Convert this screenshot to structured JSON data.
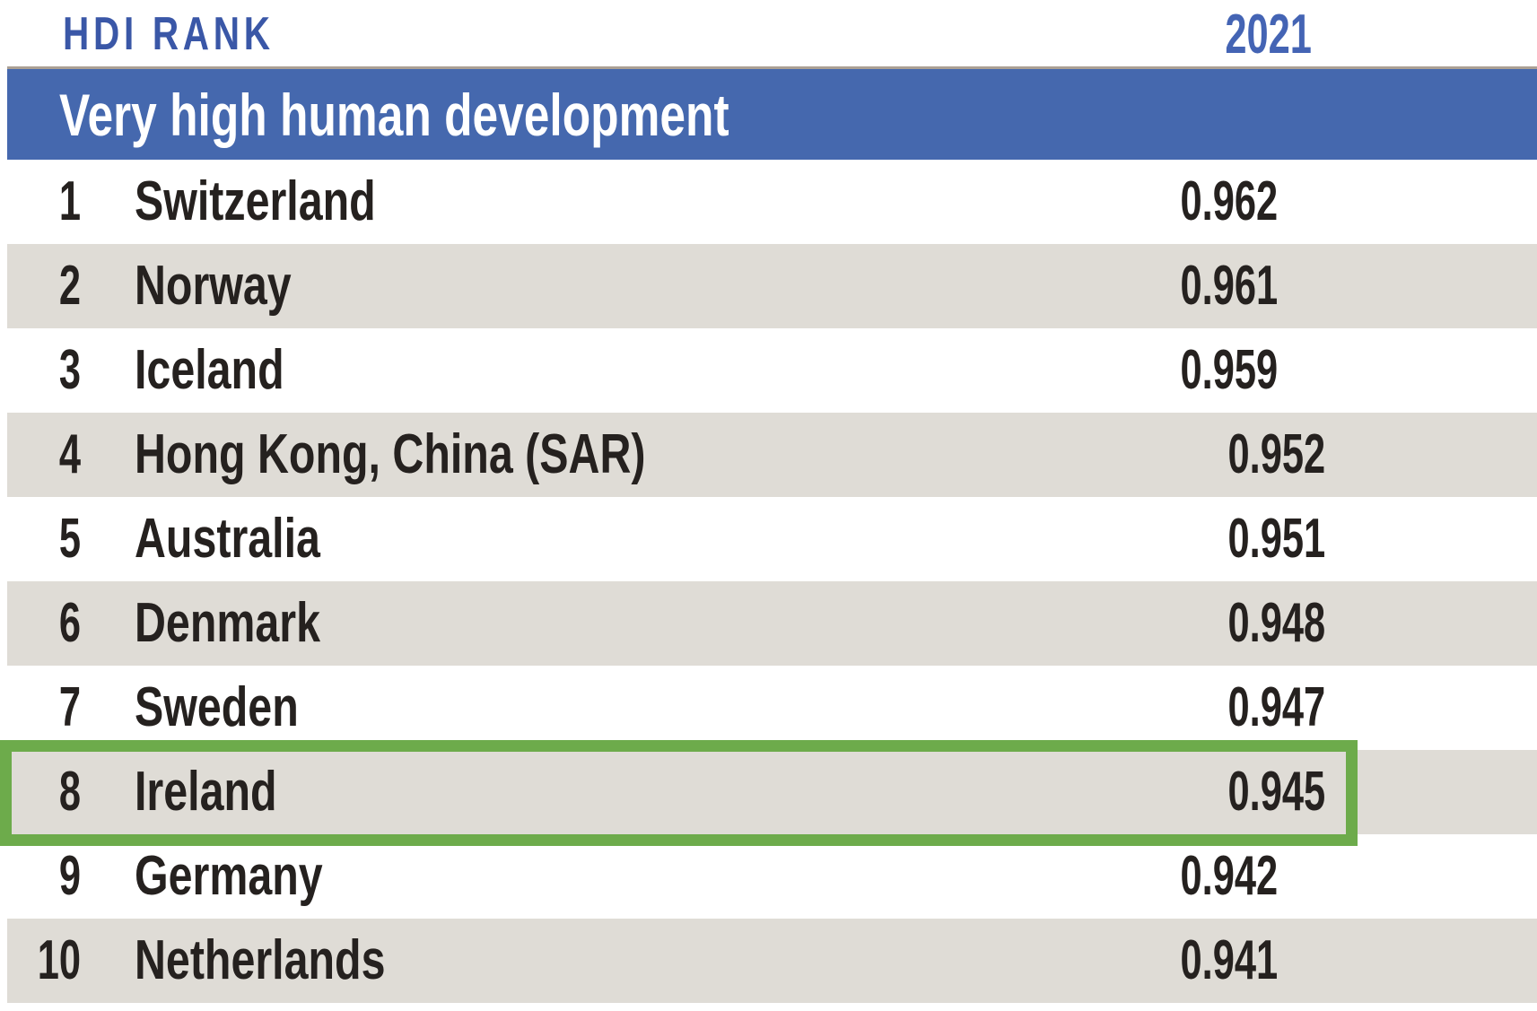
{
  "header": {
    "rank_column_label": "HDI RANK",
    "year_column_label": "2021"
  },
  "banner": {
    "label": "Very high human development"
  },
  "table": {
    "rows": [
      {
        "rank": "1",
        "country": "Switzerland",
        "value": "0.962"
      },
      {
        "rank": "2",
        "country": "Norway",
        "value": "0.961"
      },
      {
        "rank": "3",
        "country": "Iceland",
        "value": "0.959"
      },
      {
        "rank": "4",
        "country": "Hong Kong, China (SAR)",
        "value": "0.952"
      },
      {
        "rank": "5",
        "country": "Australia",
        "value": "0.951"
      },
      {
        "rank": "6",
        "country": "Denmark",
        "value": "0.948"
      },
      {
        "rank": "7",
        "country": "Sweden",
        "value": "0.947"
      },
      {
        "rank": "8",
        "country": "Ireland",
        "value": "0.945",
        "highlighted": true
      },
      {
        "rank": "9",
        "country": "Germany",
        "value": "0.942"
      },
      {
        "rank": "10",
        "country": "Netherlands",
        "value": "0.941"
      }
    ]
  },
  "highlight": {
    "type": "rectangle-annotation",
    "applies_to_rank": "8",
    "applies_to_country": "Ireland"
  },
  "colors": {
    "banner_blue": "#4568ae",
    "banner_top_rule": "#aba094",
    "header_rank_blue": "#3a57a7",
    "header_year_blue": "#4464b4",
    "row_shade_gray": "#dfdcd6",
    "highlight_green": "#6dab4b",
    "text_dark": "#25211f"
  }
}
